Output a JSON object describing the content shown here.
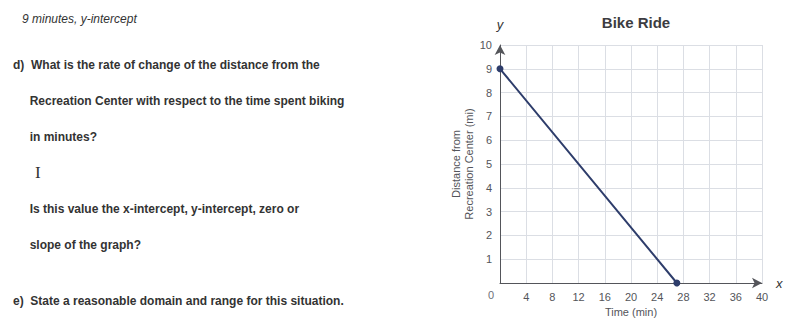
{
  "chart_data": {
    "type": "line",
    "title": "Bike Ride",
    "x_label": "Time (min)",
    "y_label": "Distance from\nRecreation Center (mi)",
    "x": [
      0,
      27
    ],
    "values": [
      9,
      0
    ],
    "color": "#2e3d6b",
    "marker": "circle",
    "xlim": [
      0,
      40
    ],
    "ylim": [
      0,
      10
    ],
    "xticks": [
      4,
      8,
      12,
      16,
      20,
      24,
      28,
      32,
      36,
      40
    ],
    "yticks": [
      1,
      2,
      3,
      4,
      5,
      6,
      7,
      8,
      9,
      10
    ],
    "grid": true,
    "origin_label": "0",
    "x_axis_symbol": "x",
    "y_axis_symbol": "y",
    "text_panel": [
      "9 minutes, y-intercept",
      "d)  What is the rate of change of the distance from the",
      "     Recreation Center with respect to the time spent biking",
      "     in minutes?",
      "I",
      "     Is this value the x-intercept, y-intercept, zero or",
      "     slope of the graph?",
      "e)  State a reasonable domain and range for this situation."
    ]
  }
}
